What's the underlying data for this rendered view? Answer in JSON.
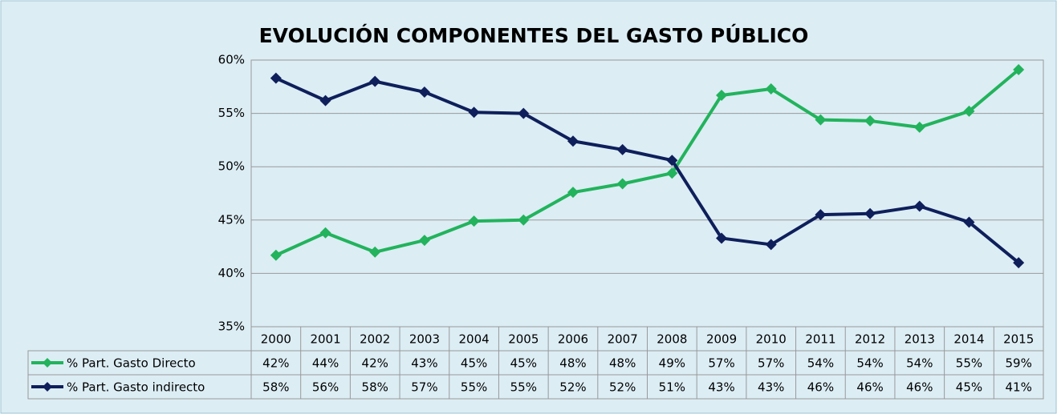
{
  "chart_data": {
    "type": "line",
    "title": "EVOLUCIÓN COMPONENTES DEL GASTO PÚBLICO",
    "categories": [
      "2000",
      "2001",
      "2002",
      "2003",
      "2004",
      "2005",
      "2006",
      "2007",
      "2008",
      "2009",
      "2010",
      "2011",
      "2012",
      "2013",
      "2014",
      "2015"
    ],
    "series": [
      {
        "name": "% Part. Gasto Directo",
        "color": "#22b35c",
        "values": [
          41.7,
          43.8,
          42.0,
          43.1,
          44.9,
          45.0,
          47.6,
          48.4,
          49.4,
          56.7,
          57.3,
          54.4,
          54.3,
          53.7,
          55.2,
          59.1
        ],
        "value_labels": [
          "42%",
          "44%",
          "42%",
          "43%",
          "45%",
          "45%",
          "48%",
          "48%",
          "49%",
          "57%",
          "57%",
          "54%",
          "54%",
          "54%",
          "55%",
          "59%"
        ]
      },
      {
        "name": "% Part. Gasto indirecto",
        "color": "#0e1f5b",
        "values": [
          58.3,
          56.2,
          58.0,
          57.0,
          55.1,
          55.0,
          52.4,
          51.6,
          50.6,
          43.3,
          42.7,
          45.5,
          45.6,
          46.3,
          44.8,
          41.0
        ],
        "value_labels": [
          "58%",
          "56%",
          "58%",
          "57%",
          "55%",
          "55%",
          "52%",
          "52%",
          "51%",
          "43%",
          "43%",
          "46%",
          "46%",
          "46%",
          "45%",
          "41%"
        ]
      }
    ],
    "ylim": [
      35,
      60
    ],
    "yticks": [
      {
        "value": 35,
        "label": "35%"
      },
      {
        "value": 40,
        "label": "40%"
      },
      {
        "value": 45,
        "label": "45%"
      },
      {
        "value": 50,
        "label": "50%"
      },
      {
        "value": 55,
        "label": "55%"
      },
      {
        "value": 60,
        "label": "60%"
      }
    ],
    "grid": true
  }
}
